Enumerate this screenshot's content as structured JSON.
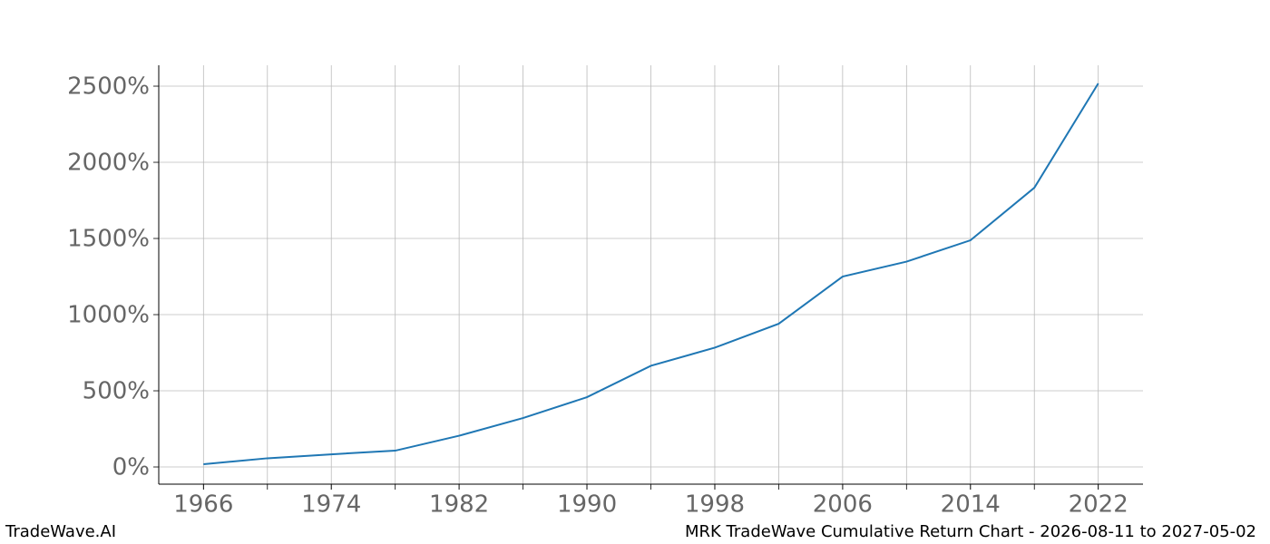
{
  "chart_data": {
    "type": "line",
    "x": [
      1966,
      1970,
      1974,
      1978,
      1982,
      1986,
      1990,
      1994,
      1998,
      2002,
      2006,
      2010,
      2014,
      2018,
      2022
    ],
    "series": [
      {
        "color": "#1f77b4",
        "values": [
          18,
          57,
          83,
          107,
          205,
          321,
          458,
          664,
          783,
          940,
          1250,
          1348,
          1488,
          1833,
          2518
        ]
      }
    ],
    "xlim": [
      1963.2,
      2024.8
    ],
    "xticks": [
      1966,
      1974,
      1982,
      1990,
      1998,
      2006,
      2014,
      2022
    ],
    "ylim": [
      -113,
      2637
    ],
    "yticks": [
      {
        "value": 0,
        "label": "0%"
      },
      {
        "value": 500,
        "label": "500%"
      },
      {
        "value": 1000,
        "label": "1000%"
      },
      {
        "value": 1500,
        "label": "1500%"
      },
      {
        "value": 2000,
        "label": "2000%"
      },
      {
        "value": 2500,
        "label": "2500%"
      }
    ],
    "grid": true,
    "footer_left": "TradeWave.AI",
    "footer_right": "MRK TradeWave Cumulative Return Chart - 2026-08-11 to 2027-05-02"
  }
}
